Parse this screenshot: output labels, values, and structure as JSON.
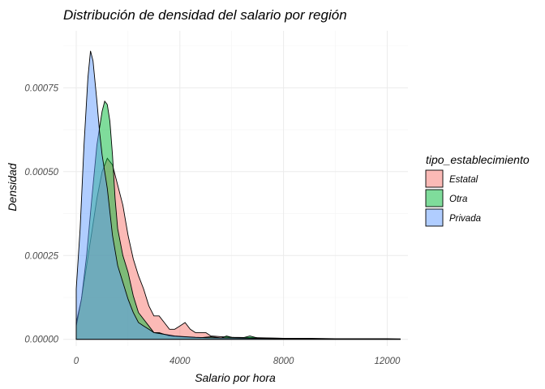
{
  "chart_data": {
    "type": "area",
    "title": "Distribución de densidad del salario por región",
    "xlabel": "Salario por hora",
    "ylabel": "Densidad",
    "xlim": [
      -500,
      12800
    ],
    "ylim": [
      -2e-05,
      0.00092
    ],
    "x_ticks": [
      0,
      4000,
      8000,
      12000
    ],
    "x_tick_labels": [
      "0",
      "4000",
      "8000",
      "12000"
    ],
    "y_ticks": [
      0,
      0.00025,
      0.0005,
      0.00075
    ],
    "y_tick_labels": [
      "0.00000",
      "0.00025",
      "0.00050",
      "0.00075"
    ],
    "grid": true,
    "legend": {
      "title": "tipo_establecimiento",
      "position": "right"
    },
    "series": [
      {
        "name": "Estatal",
        "color": "#F8766D",
        "points": [
          [
            0,
            5e-05
          ],
          [
            200,
            0.00012
          ],
          [
            400,
            0.00022
          ],
          [
            600,
            0.00032
          ],
          [
            800,
            0.00042
          ],
          [
            1000,
            0.0005
          ],
          [
            1200,
            0.00054
          ],
          [
            1400,
            0.00052
          ],
          [
            1600,
            0.00046
          ],
          [
            1800,
            0.0004
          ],
          [
            2000,
            0.00031
          ],
          [
            2200,
            0.00024
          ],
          [
            2400,
            0.00019
          ],
          [
            2600,
            0.00015
          ],
          [
            2800,
            0.0001
          ],
          [
            3000,
            7e-05
          ],
          [
            3200,
            7e-05
          ],
          [
            3400,
            5e-05
          ],
          [
            3600,
            3e-05
          ],
          [
            3800,
            3e-05
          ],
          [
            4000,
            4e-05
          ],
          [
            4200,
            5e-05
          ],
          [
            4400,
            3e-05
          ],
          [
            4600,
            2e-05
          ],
          [
            4800,
            2e-05
          ],
          [
            5000,
            2e-05
          ],
          [
            5200,
            1e-05
          ],
          [
            5600,
            8e-06
          ],
          [
            6000,
            6e-06
          ],
          [
            7000,
            5e-06
          ],
          [
            8000,
            3e-06
          ],
          [
            9000,
            3e-06
          ],
          [
            10000,
            2e-06
          ],
          [
            11000,
            2e-06
          ],
          [
            12000,
            2e-06
          ],
          [
            12500,
            1e-06
          ]
        ]
      },
      {
        "name": "Otra",
        "color": "#00BA38",
        "points": [
          [
            0,
            4e-05
          ],
          [
            200,
            0.00012
          ],
          [
            400,
            0.00025
          ],
          [
            600,
            0.00042
          ],
          [
            800,
            0.00058
          ],
          [
            1000,
            0.00068
          ],
          [
            1100,
            0.00071
          ],
          [
            1200,
            0.0007
          ],
          [
            1300,
            0.00065
          ],
          [
            1400,
            0.00055
          ],
          [
            1500,
            0.00042
          ],
          [
            1600,
            0.00033
          ],
          [
            1800,
            0.00025
          ],
          [
            2000,
            0.0002
          ],
          [
            2200,
            0.00013
          ],
          [
            2400,
            8e-05
          ],
          [
            2600,
            6e-05
          ],
          [
            2800,
            4e-05
          ],
          [
            3000,
            2e-05
          ],
          [
            3200,
            2e-05
          ],
          [
            3400,
            1.5e-05
          ],
          [
            3600,
            1e-05
          ],
          [
            4000,
            8e-06
          ],
          [
            4400,
            6e-06
          ],
          [
            4800,
            5e-06
          ],
          [
            5200,
            8e-06
          ],
          [
            5600,
            4e-06
          ],
          [
            5800,
            1e-05
          ],
          [
            6000,
            6e-06
          ],
          [
            6400,
            4e-06
          ],
          [
            6700,
            1e-05
          ],
          [
            7000,
            4e-06
          ],
          [
            8000,
            3e-06
          ],
          [
            9000,
            2e-06
          ],
          [
            10000,
            2e-06
          ],
          [
            11000,
            1e-06
          ],
          [
            12000,
            1e-06
          ],
          [
            12500,
            1e-06
          ]
        ]
      },
      {
        "name": "Privada",
        "color": "#619CFF",
        "points": [
          [
            0,
            0.00015
          ],
          [
            150,
            0.00033
          ],
          [
            300,
            0.00058
          ],
          [
            450,
            0.00078
          ],
          [
            550,
            0.00086
          ],
          [
            650,
            0.00083
          ],
          [
            800,
            0.00071
          ],
          [
            900,
            0.00062
          ],
          [
            1000,
            0.00055
          ],
          [
            1100,
            0.0005
          ],
          [
            1200,
            0.00045
          ],
          [
            1300,
            0.00038
          ],
          [
            1400,
            0.00031
          ],
          [
            1600,
            0.00022
          ],
          [
            1800,
            0.00017
          ],
          [
            2000,
            0.00012
          ],
          [
            2200,
            8e-05
          ],
          [
            2400,
            5e-05
          ],
          [
            2600,
            4e-05
          ],
          [
            2800,
            3e-05
          ],
          [
            3000,
            2e-05
          ],
          [
            3400,
            1.5e-05
          ],
          [
            3800,
            1e-05
          ],
          [
            4200,
            8e-06
          ],
          [
            4600,
            6e-06
          ],
          [
            5000,
            5e-06
          ],
          [
            6000,
            4e-06
          ],
          [
            7000,
            3e-06
          ],
          [
            8000,
            2e-06
          ],
          [
            10000,
            1e-06
          ],
          [
            12000,
            1e-06
          ],
          [
            12500,
            1e-06
          ]
        ]
      }
    ]
  }
}
